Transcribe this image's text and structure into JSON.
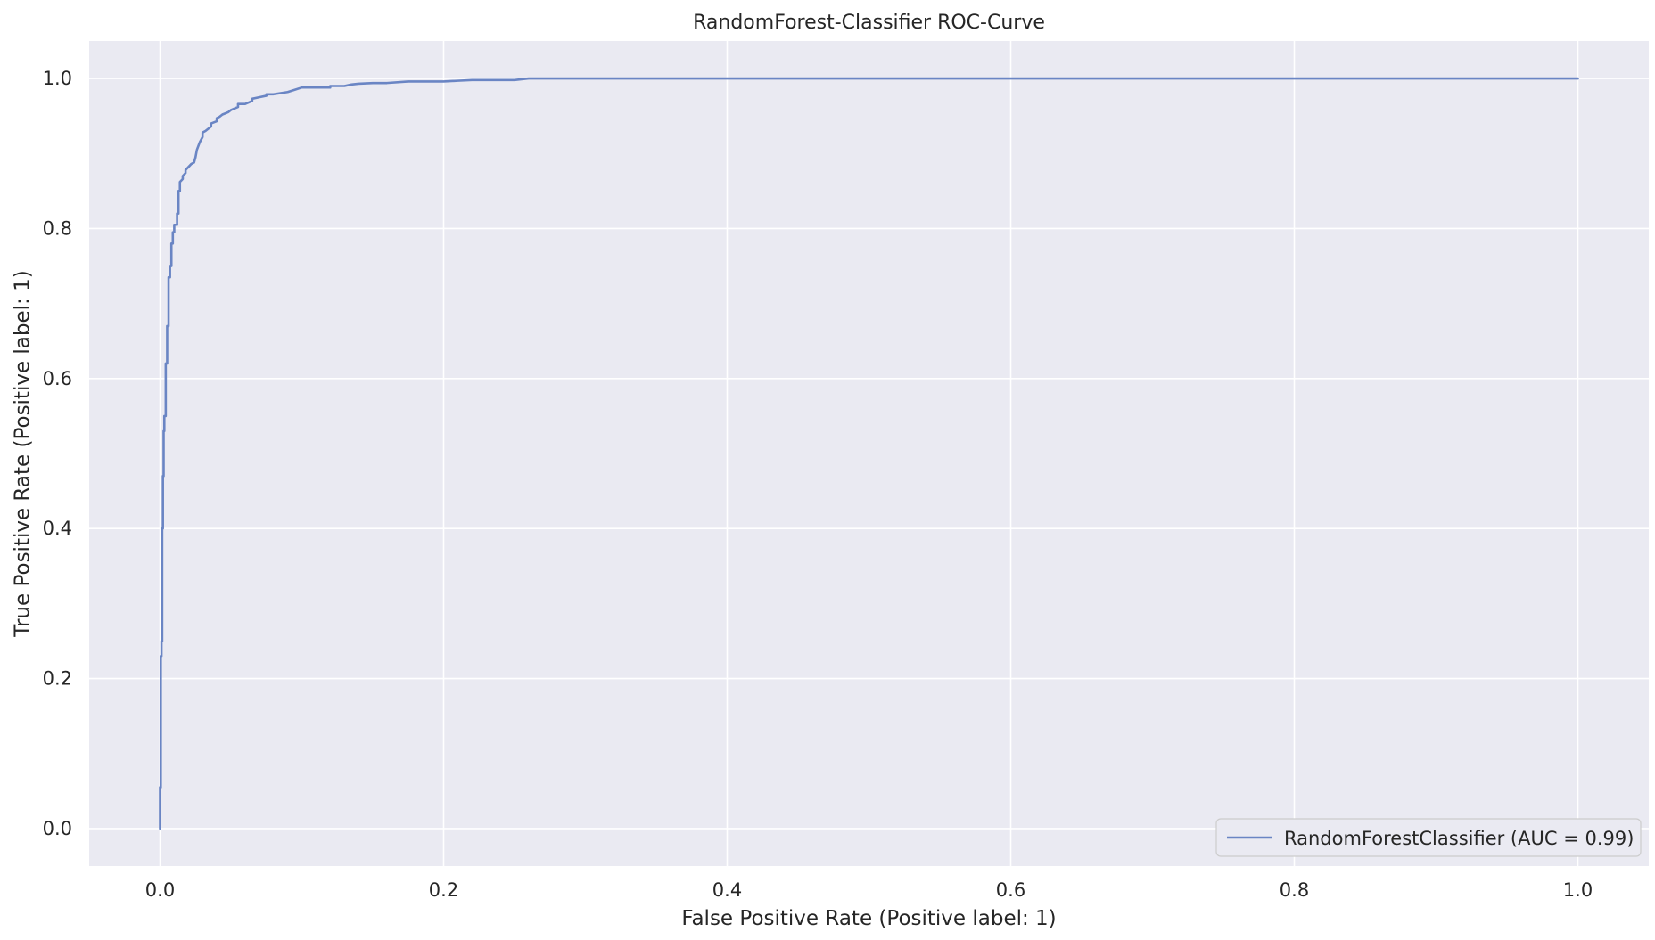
{
  "chart_data": {
    "type": "line",
    "title": "RandomForest-Classifier ROC-Curve",
    "xlabel": "False Positive Rate (Positive label: 1)",
    "ylabel": "True Positive Rate (Positive label: 1)",
    "xlim": [
      -0.05,
      1.05
    ],
    "ylim": [
      -0.05,
      1.05
    ],
    "grid": true,
    "background_color": "#eaeaf2",
    "grid_color": "#ffffff",
    "xticks": [
      0.0,
      0.2,
      0.4,
      0.6,
      0.8,
      1.0
    ],
    "xtick_labels": [
      "0.0",
      "0.2",
      "0.4",
      "0.6",
      "0.8",
      "1.0"
    ],
    "yticks": [
      0.0,
      0.2,
      0.4,
      0.6,
      0.8,
      1.0
    ],
    "ytick_labels": [
      "0.0",
      "0.2",
      "0.4",
      "0.6",
      "0.8",
      "1.0"
    ],
    "legend_position": "lower-right",
    "series": [
      {
        "name": "RandomForestClassifier (AUC = 0.99)",
        "color": "#6a85c4",
        "x": [
          0.0,
          0.0,
          0.0005,
          0.0005,
          0.001,
          0.001,
          0.0015,
          0.0015,
          0.002,
          0.002,
          0.0025,
          0.0025,
          0.003,
          0.003,
          0.004,
          0.004,
          0.005,
          0.005,
          0.006,
          0.006,
          0.007,
          0.007,
          0.008,
          0.008,
          0.009,
          0.009,
          0.01,
          0.01,
          0.012,
          0.012,
          0.013,
          0.013,
          0.014,
          0.014,
          0.016,
          0.016,
          0.018,
          0.018,
          0.02,
          0.022,
          0.024,
          0.025,
          0.026,
          0.028,
          0.03,
          0.03,
          0.032,
          0.034,
          0.036,
          0.036,
          0.04,
          0.04,
          0.042,
          0.044,
          0.048,
          0.05,
          0.055,
          0.055,
          0.06,
          0.065,
          0.065,
          0.07,
          0.075,
          0.075,
          0.08,
          0.09,
          0.095,
          0.1,
          0.12,
          0.12,
          0.13,
          0.135,
          0.14,
          0.15,
          0.16,
          0.175,
          0.2,
          0.21,
          0.22,
          0.25,
          0.255,
          0.26,
          0.3,
          0.5,
          0.8,
          1.0
        ],
        "y": [
          0.0,
          0.055,
          0.055,
          0.23,
          0.23,
          0.25,
          0.25,
          0.4,
          0.4,
          0.47,
          0.47,
          0.53,
          0.53,
          0.55,
          0.55,
          0.62,
          0.62,
          0.67,
          0.67,
          0.735,
          0.735,
          0.75,
          0.75,
          0.78,
          0.78,
          0.795,
          0.795,
          0.805,
          0.805,
          0.82,
          0.82,
          0.85,
          0.85,
          0.862,
          0.866,
          0.87,
          0.874,
          0.878,
          0.882,
          0.886,
          0.888,
          0.895,
          0.905,
          0.915,
          0.922,
          0.928,
          0.93,
          0.933,
          0.936,
          0.94,
          0.943,
          0.947,
          0.949,
          0.952,
          0.955,
          0.958,
          0.962,
          0.966,
          0.966,
          0.97,
          0.973,
          0.975,
          0.977,
          0.979,
          0.979,
          0.982,
          0.985,
          0.988,
          0.988,
          0.99,
          0.99,
          0.992,
          0.993,
          0.994,
          0.994,
          0.996,
          0.996,
          0.997,
          0.998,
          0.998,
          0.999,
          1.0,
          1.0,
          1.0,
          1.0,
          1.0
        ]
      }
    ]
  }
}
